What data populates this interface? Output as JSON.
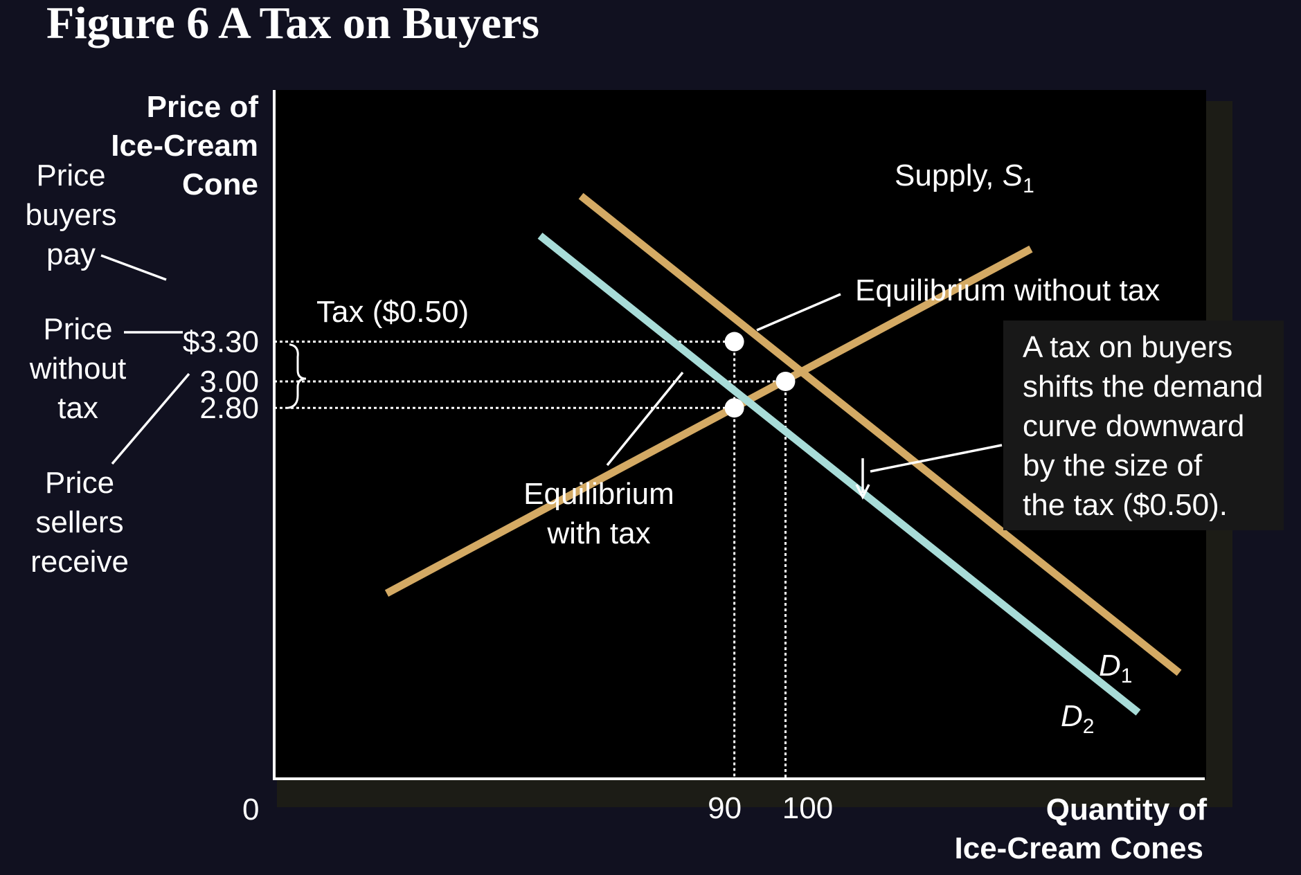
{
  "title": "Figure 6 A Tax on Buyers",
  "y_axis_label": [
    "Price of",
    "Ice-Cream",
    "Cone"
  ],
  "x_axis_label": [
    "Quantity of",
    "Ice-Cream Cones"
  ],
  "origin_label": "0",
  "side_labels": {
    "buyers_pay": [
      "Price",
      "buyers",
      "pay"
    ],
    "without_tax": [
      "Price",
      "without",
      "tax"
    ],
    "sellers_receive": [
      "Price",
      "sellers",
      "receive"
    ]
  },
  "tax_brace_label": "Tax ($0.50)",
  "annotations": {
    "eq_without_tax": "Equilibrium without tax",
    "eq_with_tax": [
      "Equilibrium",
      "with tax"
    ],
    "note": [
      "A tax on buyers",
      "shifts the demand",
      "curve downward",
      "by the size of",
      "the tax ($0.50)."
    ]
  },
  "curve_labels": {
    "supply": {
      "text": "Supply, ",
      "symbol": "S",
      "sub": "1"
    },
    "d1": {
      "symbol": "D",
      "sub": "1"
    },
    "d2": {
      "symbol": "D",
      "sub": "2"
    }
  },
  "colors": {
    "background": "#111120",
    "plot_bg": "#000000",
    "supply": "#d4aa64",
    "demand1": "#d4aa64",
    "demand2": "#a8dcd8",
    "axis": "#ffffff",
    "point": "#ffffff"
  },
  "chart_data": {
    "type": "line",
    "title": "Figure 6 A Tax on Buyers",
    "xlabel": "Quantity of Ice-Cream Cones",
    "ylabel": "Price of Ice-Cream Cone",
    "xlim": [
      0,
      182
    ],
    "ylim": [
      0,
      5.2
    ],
    "x_ticks": [
      {
        "value": 90,
        "label": "90"
      },
      {
        "value": 100,
        "label": "100"
      }
    ],
    "y_ticks": [
      {
        "value": 3.3,
        "label": "$3.30"
      },
      {
        "value": 3.0,
        "label": "3.00"
      },
      {
        "value": 2.8,
        "label": "2.80"
      }
    ],
    "series": [
      {
        "name": "Supply, S1",
        "points": [
          [
            22,
            1.4
          ],
          [
            90,
            2.8
          ],
          [
            100,
            3.0
          ],
          [
            148,
            4.0
          ]
        ]
      },
      {
        "name": "D1",
        "points": [
          [
            60,
            4.4
          ],
          [
            90,
            3.3
          ],
          [
            100,
            3.0
          ],
          [
            177,
            0.8
          ]
        ]
      },
      {
        "name": "D2",
        "points": [
          [
            52,
            4.1
          ],
          [
            90,
            2.8
          ],
          [
            169,
            0.5
          ]
        ]
      }
    ],
    "points": [
      {
        "x": 90,
        "y": 3.3
      },
      {
        "x": 100,
        "y": 3.0
      },
      {
        "x": 90,
        "y": 2.8
      }
    ],
    "tax": 0.5,
    "grid": false,
    "legend": "none"
  }
}
